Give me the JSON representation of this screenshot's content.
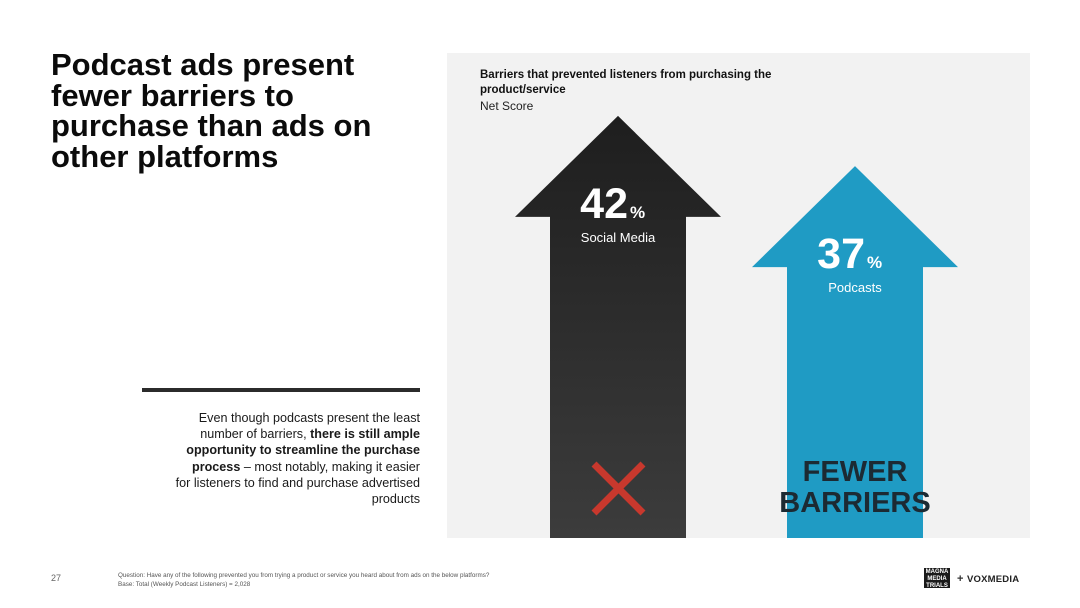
{
  "headline": "Podcast ads present fewer barriers to purchase than ads on other platforms",
  "body": {
    "part1": "Even though podcasts present the least number of barriers, ",
    "bold": "there is still ample opportunity to streamline the purchase process",
    "part2": " – most notably, making it easier for listeners to find and purchase advertised products"
  },
  "chart_data": {
    "type": "bar",
    "title": "Barriers that prevented listeners from purchasing the product/service",
    "subtitle": "Net Score",
    "categories": [
      "Social Media",
      "Podcasts"
    ],
    "values": [
      42,
      37
    ],
    "unit": "%",
    "ylim": [
      0,
      50
    ],
    "colors": [
      "#2a2a2a",
      "#1f9bc4"
    ],
    "annotations": {
      "social_media_mark": "x-mark",
      "podcasts_label": [
        "FEWER",
        "BARRIERS"
      ]
    },
    "accent_colors": {
      "x_mark": "#c8382d"
    }
  },
  "footer": {
    "page_number": "27",
    "question": "Question: Have any of the following prevented you from trying a product or service you heard about from ads on the below platforms?",
    "base": "Base: Total (Weekly Podcast Listeners) = 2,028"
  },
  "logos": {
    "magna": "MAGNA MEDIA TRIALS",
    "plus": "+",
    "voxmedia": "VOXMEDIA"
  }
}
